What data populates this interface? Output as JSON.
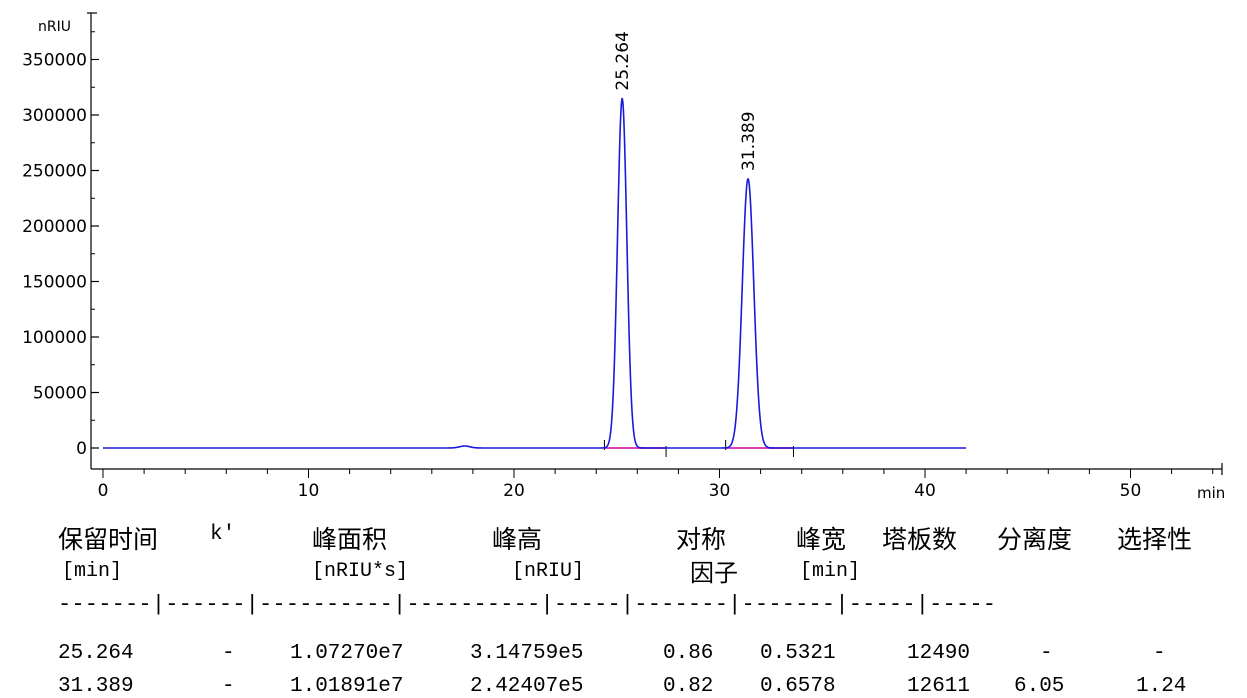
{
  "chart_data": {
    "type": "line",
    "ylabel": "nRIU",
    "xlabel": "min",
    "xlim": [
      0,
      55
    ],
    "ylim": [
      -20000,
      395000
    ],
    "x_ticks": [
      "0",
      "10",
      "20",
      "30",
      "40",
      "50"
    ],
    "y_ticks": [
      "0",
      "50000",
      "100000",
      "150000",
      "200000",
      "250000",
      "300000",
      "350000"
    ],
    "signal_color": "#1a1adb",
    "baseline_color": "#e040c0",
    "trace_end": 42,
    "peaks": [
      {
        "label": "25.264",
        "rt": 25.264,
        "height": 314759,
        "width": 0.5321
      },
      {
        "label": "31.389",
        "rt": 31.389,
        "height": 242407,
        "width": 0.6578
      }
    ],
    "minor_bumps": [
      {
        "rt": 17.6,
        "height": 1800,
        "width": 0.6
      }
    ],
    "integration_baselines": [
      {
        "start": 24.4,
        "end": 27.4
      },
      {
        "start": 30.3,
        "end": 33.6
      }
    ],
    "grid": false,
    "legend": "none"
  },
  "table": {
    "headers": [
      {
        "top": "保留时间",
        "unit": "[min]"
      },
      {
        "top": "k'",
        "unit": ""
      },
      {
        "top": "峰面积",
        "unit": "[nRIU*s]"
      },
      {
        "top": "峰高",
        "unit": "[nRIU]"
      },
      {
        "top": "对称",
        "unit": "因子"
      },
      {
        "top": "峰宽",
        "unit": "[min]"
      },
      {
        "top": "塔板数",
        "unit": ""
      },
      {
        "top": "分离度",
        "unit": ""
      },
      {
        "top": "选择性",
        "unit": ""
      }
    ],
    "separator": "-------|------|----------|----------|-----|-------|-------|-----|-----",
    "rows": [
      [
        "25.264",
        "-",
        "1.07270e7",
        "3.14759e5",
        "0.86",
        "0.5321",
        "12490",
        "-",
        "-"
      ],
      [
        "31.389",
        "-",
        "1.01891e7",
        "2.42407e5",
        "0.82",
        "0.6578",
        "12611",
        "6.05",
        "1.24"
      ]
    ]
  }
}
